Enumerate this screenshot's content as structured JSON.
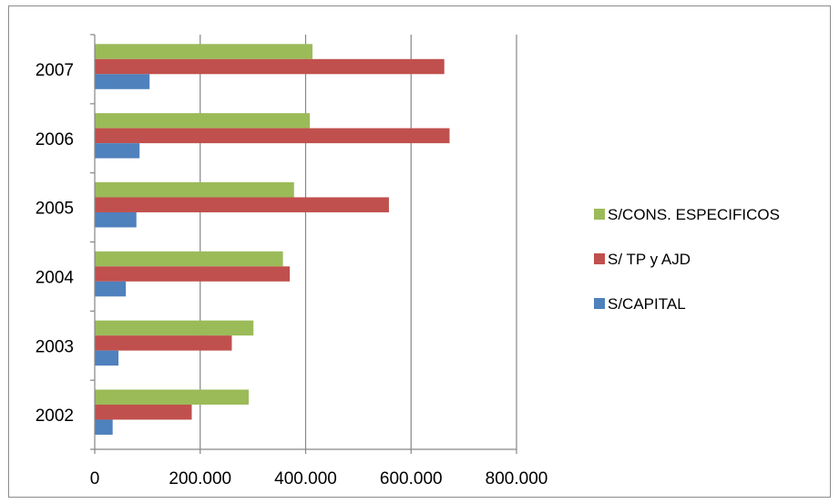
{
  "chart_data": {
    "type": "bar",
    "orientation": "horizontal",
    "categories": [
      "2002",
      "2003",
      "2004",
      "2005",
      "2006",
      "2007"
    ],
    "series": [
      {
        "name": "S/CONS. ESPECIFICOS",
        "color": "#9bbb59",
        "values": [
          292000,
          301000,
          357000,
          378000,
          408000,
          413000
        ]
      },
      {
        "name": "S/ TP y AJD",
        "color": "#c0504d",
        "values": [
          184000,
          260000,
          370000,
          558000,
          673000,
          663000
        ]
      },
      {
        "name": "S/CAPITAL",
        "color": "#4f81bd",
        "values": [
          34000,
          45000,
          59000,
          79000,
          85000,
          104000
        ]
      }
    ],
    "xlim": [
      0,
      800000
    ],
    "x_ticks": [
      "0",
      "200.000",
      "400.000",
      "600.000",
      "800.000"
    ],
    "x_tick_values": [
      0,
      200000,
      400000,
      600000,
      800000
    ],
    "grid": "vertical major gridlines",
    "legend_position": "right"
  }
}
